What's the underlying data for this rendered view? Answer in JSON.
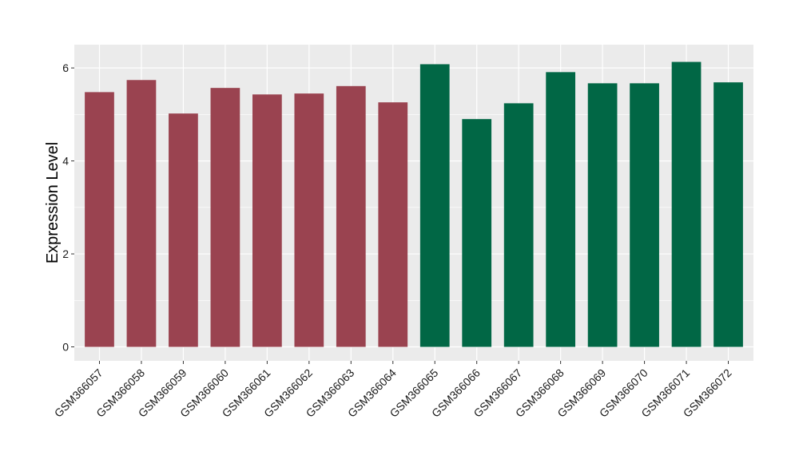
{
  "chart_data": {
    "type": "bar",
    "title": "",
    "xlabel": "",
    "ylabel": "Expression Level",
    "ylim": [
      -0.3,
      6.5
    ],
    "yticks": [
      0,
      2,
      4,
      6
    ],
    "grid": true,
    "legend": "none",
    "categories": [
      "GSM366057",
      "GSM366058",
      "GSM366059",
      "GSM366060",
      "GSM366061",
      "GSM366062",
      "GSM366063",
      "GSM366064",
      "GSM366065",
      "GSM366066",
      "GSM366067",
      "GSM366068",
      "GSM366069",
      "GSM366070",
      "GSM366071",
      "GSM366072"
    ],
    "values": [
      5.48,
      5.74,
      5.02,
      5.57,
      5.43,
      5.45,
      5.61,
      5.26,
      6.08,
      4.9,
      5.24,
      5.91,
      5.67,
      5.67,
      6.13,
      5.69
    ],
    "bar_groups": [
      0,
      0,
      0,
      0,
      0,
      0,
      0,
      0,
      1,
      1,
      1,
      1,
      1,
      1,
      1,
      1
    ],
    "colors": {
      "group_1": "#9a4350",
      "group_2": "#016745",
      "panel": "#ebebeb",
      "grid": "#ffffff"
    }
  }
}
